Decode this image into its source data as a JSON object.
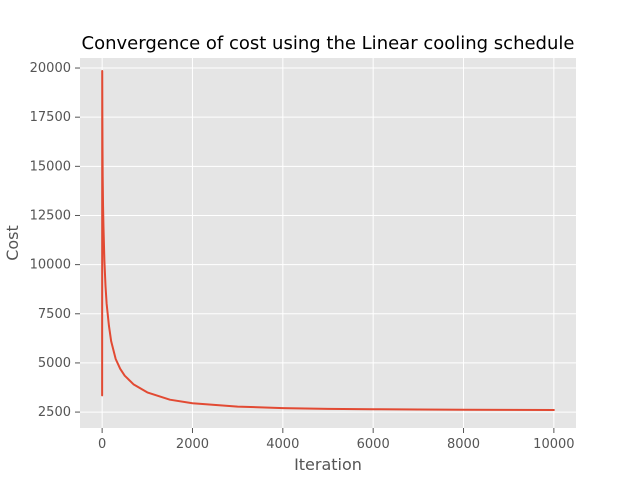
{
  "chart_data": {
    "type": "line",
    "title": "Convergence of cost using the Linear cooling schedule",
    "xlabel": "Iteration",
    "ylabel": "Cost",
    "xlim": [
      -490,
      10490
    ],
    "ylim": [
      1690,
      20510
    ],
    "xticks": [
      0,
      2000,
      4000,
      6000,
      8000,
      10000
    ],
    "yticks": [
      2500,
      5000,
      7500,
      10000,
      12500,
      15000,
      17500,
      20000
    ],
    "xtick_labels": [
      "0",
      "2000",
      "4000",
      "6000",
      "8000",
      "10000"
    ],
    "ytick_labels": [
      "2500",
      "5000",
      "7500",
      "10000",
      "12500",
      "15000",
      "17500",
      "20000"
    ],
    "grid": true,
    "colors": {
      "plot_bg": "#e5e5e5",
      "grid": "#ffffff",
      "line": "#e24a33",
      "tick_text": "#555555"
    },
    "series": [
      {
        "x": [
          0,
          2,
          5,
          8,
          12,
          20,
          30,
          50,
          75,
          100,
          150,
          200,
          300,
          400,
          500,
          700,
          1000,
          1500,
          2000,
          3000,
          4000,
          5000,
          6000,
          7000,
          8000,
          9000,
          10000
        ],
        "values": [
          3350,
          19850,
          17600,
          16000,
          14500,
          13000,
          11900,
          10200,
          8900,
          8000,
          6900,
          6100,
          5200,
          4700,
          4350,
          3900,
          3500,
          3130,
          2950,
          2780,
          2700,
          2665,
          2645,
          2630,
          2620,
          2612,
          2605
        ]
      }
    ]
  }
}
